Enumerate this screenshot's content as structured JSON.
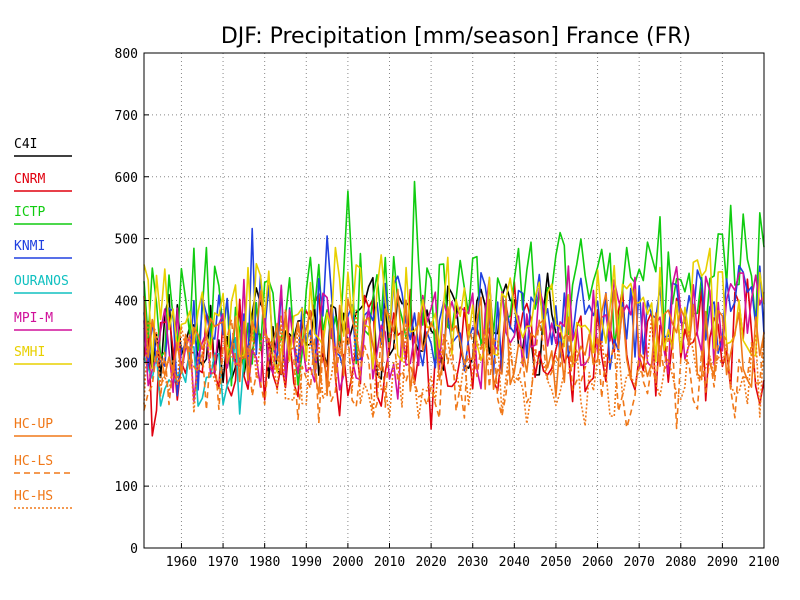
{
  "chart_data": {
    "type": "line",
    "title": "DJF: Precipitation [mm/season] France (FR)",
    "xlabel": "",
    "ylabel": "",
    "xlim": [
      1951,
      2100
    ],
    "ylim": [
      0,
      800
    ],
    "x_ticks": [
      1960,
      1970,
      1980,
      1990,
      2000,
      2010,
      2020,
      2030,
      2040,
      2050,
      2060,
      2070,
      2080,
      2090,
      2100
    ],
    "y_ticks": [
      0,
      100,
      200,
      300,
      400,
      500,
      600,
      700,
      800
    ],
    "grid": true,
    "legend_position": "left",
    "series": [
      {
        "name": "C4I",
        "color": "#000000",
        "style": "solid",
        "base": 340,
        "amp": 70,
        "trend": 0.2,
        "range": [
          1951,
          2050
        ]
      },
      {
        "name": "CNRM",
        "color": "#e0000f",
        "style": "solid",
        "base": 290,
        "amp": 90,
        "trend": 0.3,
        "range": [
          1951,
          2100
        ]
      },
      {
        "name": "ICTP",
        "color": "#10cc10",
        "style": "solid",
        "base": 360,
        "amp": 90,
        "trend": 0.6,
        "range": [
          1951,
          2100
        ]
      },
      {
        "name": "KNMI",
        "color": "#2040e0",
        "style": "solid",
        "base": 330,
        "amp": 70,
        "trend": 0.4,
        "range": [
          1951,
          2100
        ]
      },
      {
        "name": "OURANOS",
        "color": "#10c0c0",
        "style": "solid",
        "base": 270,
        "amp": 60,
        "trend": 0.0,
        "range": [
          1951,
          1975
        ]
      },
      {
        "name": "MPI-M",
        "color": "#d0109a",
        "style": "solid",
        "base": 320,
        "amp": 80,
        "trend": 0.4,
        "range": [
          1951,
          2100
        ]
      },
      {
        "name": "SMHI",
        "color": "#e8d000",
        "style": "solid",
        "base": 360,
        "amp": 80,
        "trend": 0.2,
        "range": [
          1951,
          2100
        ]
      },
      {
        "name": "HC-UP",
        "color": "#f07818",
        "style": "solid",
        "base": 320,
        "amp": 75,
        "trend": 0.1,
        "range": [
          1951,
          2100
        ]
      },
      {
        "name": "HC-LS",
        "color": "#f07818",
        "style": "dashed",
        "base": 290,
        "amp": 75,
        "trend": 0.0,
        "range": [
          1951,
          2100
        ]
      },
      {
        "name": "HC-HS",
        "color": "#f07818",
        "style": "dotted",
        "base": 300,
        "amp": 70,
        "trend": -0.1,
        "range": [
          1951,
          2100
        ]
      }
    ]
  }
}
